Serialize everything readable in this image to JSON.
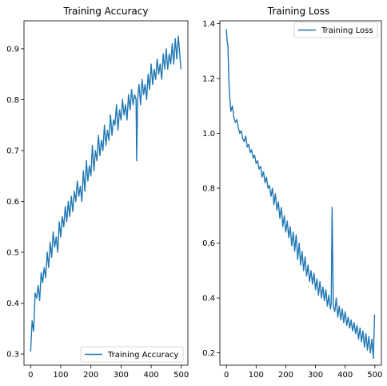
{
  "chart_data": [
    {
      "type": "line",
      "title": "Training Accuracy",
      "xlabel": "",
      "ylabel": "",
      "xlim": [
        -22,
        522
      ],
      "ylim": [
        0.278,
        0.955
      ],
      "xticks": [
        0,
        100,
        200,
        300,
        400,
        500
      ],
      "yticks": [
        0.3,
        0.4,
        0.5,
        0.6,
        0.7,
        0.8,
        0.9
      ],
      "ytick_labels": [
        "0.3",
        "0.4",
        "0.5",
        "0.6",
        "0.7",
        "0.8",
        "0.9"
      ],
      "grid": false,
      "legend_position": "lower-right",
      "series": [
        {
          "name": "Training Accuracy",
          "color": "#1f77b4",
          "x": [
            0,
            5,
            10,
            15,
            20,
            25,
            30,
            35,
            40,
            45,
            50,
            55,
            60,
            65,
            70,
            75,
            80,
            85,
            90,
            95,
            100,
            105,
            110,
            115,
            120,
            125,
            130,
            135,
            140,
            145,
            150,
            155,
            160,
            165,
            170,
            175,
            180,
            185,
            190,
            195,
            200,
            205,
            210,
            215,
            220,
            225,
            230,
            235,
            240,
            245,
            250,
            255,
            260,
            265,
            270,
            275,
            280,
            285,
            290,
            295,
            300,
            305,
            310,
            315,
            320,
            325,
            330,
            335,
            340,
            345,
            350,
            352,
            355,
            360,
            365,
            370,
            375,
            380,
            385,
            390,
            395,
            400,
            405,
            410,
            415,
            420,
            425,
            430,
            435,
            440,
            445,
            450,
            455,
            460,
            465,
            470,
            475,
            480,
            485,
            490,
            495,
            499
          ],
          "values": [
            0.305,
            0.365,
            0.345,
            0.42,
            0.41,
            0.435,
            0.405,
            0.46,
            0.44,
            0.47,
            0.45,
            0.5,
            0.47,
            0.52,
            0.49,
            0.54,
            0.51,
            0.53,
            0.5,
            0.56,
            0.53,
            0.57,
            0.55,
            0.59,
            0.56,
            0.6,
            0.57,
            0.61,
            0.58,
            0.62,
            0.6,
            0.64,
            0.61,
            0.63,
            0.6,
            0.66,
            0.62,
            0.68,
            0.64,
            0.67,
            0.65,
            0.71,
            0.66,
            0.7,
            0.68,
            0.73,
            0.69,
            0.72,
            0.7,
            0.75,
            0.71,
            0.74,
            0.72,
            0.77,
            0.73,
            0.76,
            0.75,
            0.79,
            0.74,
            0.78,
            0.76,
            0.8,
            0.77,
            0.79,
            0.76,
            0.81,
            0.78,
            0.82,
            0.79,
            0.81,
            0.8,
            0.68,
            0.8,
            0.83,
            0.79,
            0.84,
            0.81,
            0.83,
            0.8,
            0.85,
            0.82,
            0.87,
            0.83,
            0.86,
            0.84,
            0.88,
            0.85,
            0.87,
            0.84,
            0.89,
            0.86,
            0.9,
            0.86,
            0.89,
            0.87,
            0.91,
            0.87,
            0.92,
            0.88,
            0.925,
            0.89,
            0.86
          ]
        }
      ]
    },
    {
      "type": "line",
      "title": "Training Loss",
      "xlabel": "",
      "ylabel": "",
      "xlim": [
        -22,
        522
      ],
      "ylim": [
        0.155,
        1.41
      ],
      "xticks": [
        0,
        100,
        200,
        300,
        400,
        500
      ],
      "yticks": [
        0.2,
        0.4,
        0.6,
        0.8,
        1.0,
        1.2,
        1.4
      ],
      "ytick_labels": [
        "0.2",
        "0.4",
        "0.6",
        "0.8",
        "1.0",
        "1.2",
        "1.4"
      ],
      "grid": false,
      "legend_position": "upper-right",
      "series": [
        {
          "name": "Training Loss",
          "color": "#1f77b4",
          "x": [
            0,
            2,
            5,
            8,
            10,
            12,
            15,
            20,
            25,
            30,
            35,
            40,
            45,
            50,
            55,
            60,
            65,
            70,
            75,
            80,
            85,
            90,
            95,
            100,
            105,
            110,
            115,
            120,
            125,
            130,
            135,
            140,
            145,
            150,
            155,
            160,
            165,
            170,
            175,
            180,
            185,
            190,
            195,
            200,
            205,
            210,
            215,
            220,
            225,
            230,
            235,
            240,
            245,
            250,
            255,
            260,
            265,
            270,
            275,
            280,
            285,
            290,
            295,
            300,
            305,
            310,
            315,
            320,
            325,
            330,
            335,
            340,
            345,
            350,
            353,
            356,
            360,
            365,
            370,
            375,
            380,
            385,
            390,
            395,
            400,
            405,
            410,
            415,
            420,
            425,
            430,
            435,
            440,
            445,
            450,
            455,
            460,
            465,
            470,
            475,
            480,
            485,
            490,
            495,
            499
          ],
          "values": [
            1.38,
            1.34,
            1.32,
            1.2,
            1.15,
            1.12,
            1.08,
            1.1,
            1.06,
            1.04,
            1.05,
            1.02,
            1.0,
            1.01,
            0.98,
            0.97,
            0.99,
            0.95,
            0.96,
            0.93,
            0.94,
            0.91,
            0.92,
            0.89,
            0.9,
            0.87,
            0.88,
            0.84,
            0.86,
            0.82,
            0.84,
            0.8,
            0.81,
            0.77,
            0.8,
            0.74,
            0.78,
            0.72,
            0.75,
            0.69,
            0.73,
            0.66,
            0.7,
            0.64,
            0.68,
            0.62,
            0.66,
            0.59,
            0.64,
            0.57,
            0.63,
            0.54,
            0.6,
            0.52,
            0.57,
            0.5,
            0.55,
            0.48,
            0.52,
            0.46,
            0.5,
            0.45,
            0.49,
            0.43,
            0.47,
            0.41,
            0.46,
            0.4,
            0.44,
            0.39,
            0.43,
            0.37,
            0.41,
            0.36,
            0.38,
            0.73,
            0.37,
            0.35,
            0.4,
            0.33,
            0.37,
            0.32,
            0.36,
            0.31,
            0.35,
            0.3,
            0.33,
            0.29,
            0.32,
            0.28,
            0.31,
            0.27,
            0.3,
            0.25,
            0.29,
            0.24,
            0.28,
            0.22,
            0.27,
            0.21,
            0.26,
            0.2,
            0.25,
            0.18,
            0.34
          ]
        }
      ]
    }
  ]
}
